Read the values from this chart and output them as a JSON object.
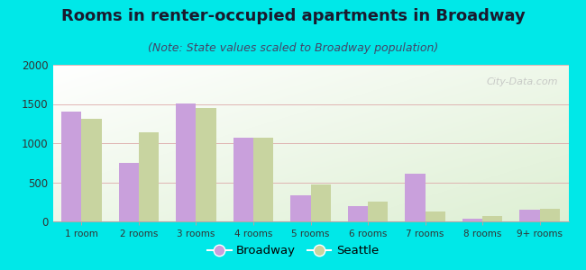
{
  "title": "Rooms in renter-occupied apartments in Broadway",
  "subtitle": "(Note: State values scaled to Broadway population)",
  "categories": [
    "1 room",
    "2 rooms",
    "3 rooms",
    "4 rooms",
    "5 rooms",
    "6 rooms",
    "7 rooms",
    "8 rooms",
    "9+ rooms"
  ],
  "broadway_values": [
    1400,
    750,
    1510,
    1070,
    330,
    200,
    610,
    30,
    155
  ],
  "seattle_values": [
    1310,
    1140,
    1450,
    1070,
    470,
    250,
    125,
    70,
    160
  ],
  "broadway_color": "#c9a0dc",
  "seattle_color": "#c8d4a0",
  "background_outer": "#00e8e8",
  "ylim": [
    0,
    2000
  ],
  "yticks": [
    0,
    500,
    1000,
    1500,
    2000
  ],
  "bar_width": 0.35,
  "title_fontsize": 13,
  "subtitle_fontsize": 9,
  "legend_labels": [
    "Broadway",
    "Seattle"
  ],
  "watermark": "City-Data.com"
}
